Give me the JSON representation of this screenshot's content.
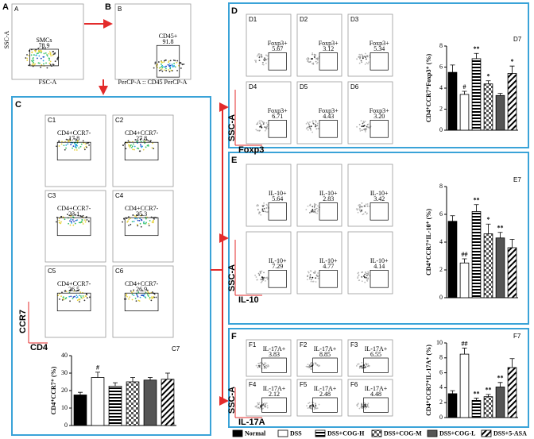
{
  "panels": {
    "A": {
      "label": "A",
      "y_label": "SSC-A",
      "x_label": "FSC-A",
      "gate": "SMCs",
      "percent": "78.9"
    },
    "B": {
      "label": "B",
      "x_label": "PerCP-A :: CD45 PerCP-A",
      "gate": "CD45+",
      "percent": "91.8"
    },
    "C": {
      "label": "C",
      "y_label": "CCR7",
      "x_label": "CD4",
      "plots": [
        {
          "label": "C1",
          "gate": "CD4+CCR7-",
          "percent": "17.8"
        },
        {
          "label": "C2",
          "gate": "CD4+CCR7-",
          "percent": "27.8"
        },
        {
          "label": "C3",
          "gate": "CD4+CCR7-",
          "percent": "23.1"
        },
        {
          "label": "C4",
          "gate": "CD4+CCR7-",
          "percent": "25.3"
        },
        {
          "label": "C5",
          "gate": "CD4+CCR7-",
          "percent": "26.5"
        },
        {
          "label": "C6",
          "gate": "CD4+CCR7-",
          "percent": "26.9"
        }
      ]
    },
    "D": {
      "label": "D",
      "y_label": "SSC-A",
      "x_label": "Foxp3",
      "plots": [
        {
          "label": "D1",
          "gate": "Foxp3+",
          "percent": "5.67"
        },
        {
          "label": "D2",
          "gate": "Foxp3+",
          "percent": "3.12"
        },
        {
          "label": "D3",
          "gate": "Foxp3+",
          "percent": "5.34"
        },
        {
          "label": "D4",
          "gate": "Foxp3+",
          "percent": "6.71"
        },
        {
          "label": "D5",
          "gate": "Foxp3+",
          "percent": "4.43"
        },
        {
          "label": "D6",
          "gate": "Foxp3+",
          "percent": "3.20"
        }
      ]
    },
    "E": {
      "label": "E",
      "y_label": "SSC-A",
      "x_label": "IL-10",
      "plots": [
        {
          "gate": "IL-10+",
          "percent": "5.64"
        },
        {
          "gate": "IL-10+",
          "percent": "2.83"
        },
        {
          "gate": "IL-10+",
          "percent": "3.42"
        },
        {
          "gate": "IL-10+",
          "percent": "7.29"
        },
        {
          "gate": "IL-10+",
          "percent": "4.77"
        },
        {
          "gate": "IL-10+",
          "percent": "4.14"
        }
      ]
    },
    "F": {
      "label": "F",
      "y_label": "SSC-A",
      "x_label": "IL-17A",
      "plots": [
        {
          "label": "F1",
          "gate": "IL-17A+",
          "percent": "3.83"
        },
        {
          "label": "F2",
          "gate": "IL-17A+",
          "percent": "8.85"
        },
        {
          "label": "F3",
          "gate": "IL-17A+",
          "percent": "6.55"
        },
        {
          "label": "F4",
          "gate": "IL-17A+",
          "percent": "2.12"
        },
        {
          "label": "F5",
          "gate": "IL-17A+",
          "percent": "2.48"
        },
        {
          "label": "F6",
          "gate": "IL-17A+",
          "percent": "4.48"
        }
      ]
    }
  },
  "legend": [
    "Normal",
    "DSS",
    "DSS+COG-H",
    "DSS+COG-M",
    "DSS+COG-L",
    "DSS+5-ASA"
  ],
  "chart_data": [
    {
      "type": "bar",
      "label": "C7",
      "ylabel": "CD4⁺CCR7⁺ (%)",
      "ylim": [
        0,
        40
      ],
      "yticks": [
        0,
        10,
        20,
        30,
        40
      ],
      "values": [
        17.5,
        27.5,
        22.5,
        25,
        26,
        26.5
      ],
      "errors": [
        1.5,
        3,
        2,
        2.5,
        1.5,
        3.5
      ],
      "annotations": [
        null,
        "#",
        null,
        null,
        null,
        null
      ]
    },
    {
      "type": "bar",
      "label": "D7",
      "ylabel": "CD4⁺CCR7⁺Foxp3⁺ (%)",
      "ylim": [
        0,
        8
      ],
      "yticks": [
        0,
        2,
        4,
        6,
        8
      ],
      "values": [
        5.5,
        3.4,
        6.8,
        4.4,
        3.3,
        5.4
      ],
      "errors": [
        0.7,
        0.3,
        0.5,
        0.3,
        0.2,
        0.7
      ],
      "annotations": [
        null,
        "#",
        "**",
        "*",
        null,
        "*"
      ]
    },
    {
      "type": "bar",
      "label": "E7",
      "ylabel": "CD4⁺CCR7⁺IL-10⁺ (%)",
      "ylim": [
        0,
        8
      ],
      "yticks": [
        0,
        2,
        4,
        6,
        8
      ],
      "values": [
        5.5,
        2.5,
        6.2,
        4.6,
        4.3,
        3.6
      ],
      "errors": [
        0.4,
        0.3,
        0.5,
        0.7,
        0.4,
        0.6
      ],
      "annotations": [
        null,
        "##",
        "**",
        "*",
        "**",
        null
      ]
    },
    {
      "type": "bar",
      "label": "F7",
      "ylabel": "CD4⁺CCR7⁺IL-17A⁺ (%)",
      "ylim": [
        0,
        10
      ],
      "yticks": [
        0,
        2,
        4,
        6,
        8,
        10
      ],
      "values": [
        3.2,
        8.5,
        2.3,
        2.8,
        4.1,
        6.7
      ],
      "errors": [
        0.4,
        0.8,
        0.3,
        0.3,
        0.6,
        1.2
      ],
      "annotations": [
        null,
        "##",
        "**",
        "**",
        "**",
        null
      ]
    }
  ]
}
